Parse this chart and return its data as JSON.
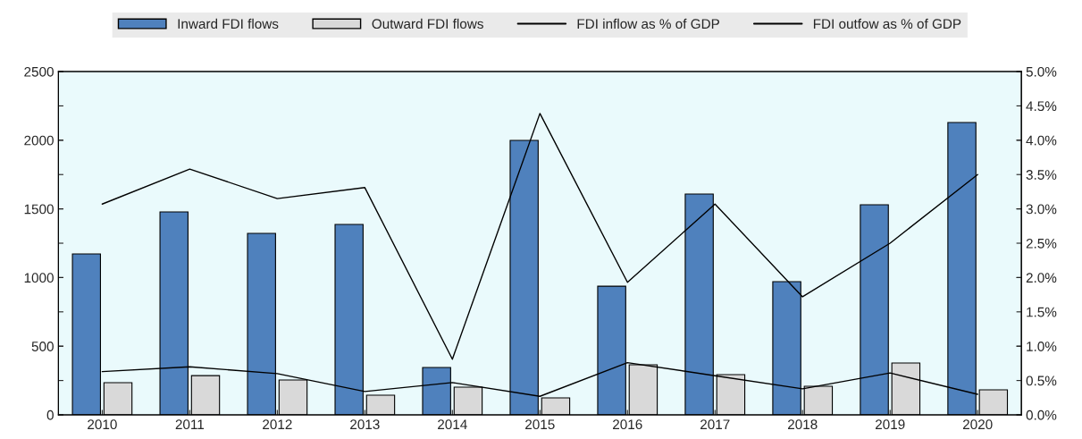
{
  "chart_data": {
    "type": "bar",
    "categories": [
      "2010",
      "2011",
      "2012",
      "2013",
      "2014",
      "2015",
      "2016",
      "2017",
      "2018",
      "2019",
      "2020"
    ],
    "series": [
      {
        "name": "Inward FDI flows",
        "color": "#4f81bd",
        "values": [
          1172,
          1478,
          1322,
          1387,
          345,
          1999,
          937,
          1608,
          970,
          1530,
          2129
        ]
      },
      {
        "name": "Outward FDI flows",
        "color": "#d9d9d9",
        "values": [
          234,
          286,
          254,
          143,
          202,
          124,
          365,
          293,
          208,
          378,
          182
        ]
      },
      {
        "name": "FDI inflow as % of GDP",
        "type": "line",
        "axis": "y2",
        "color": "#000000",
        "values": [
          3.07,
          3.58,
          3.15,
          3.31,
          0.81,
          4.39,
          1.93,
          3.07,
          1.72,
          2.5,
          3.5
        ]
      },
      {
        "name": "FDI outfow as % of GDP",
        "type": "line",
        "axis": "y2",
        "color": "#000000",
        "values": [
          0.63,
          0.7,
          0.6,
          0.34,
          0.47,
          0.27,
          0.76,
          0.57,
          0.38,
          0.61,
          0.3
        ]
      }
    ],
    "ylim": [
      0,
      2500
    ],
    "yticks": [
      0,
      500,
      1000,
      1500,
      2000,
      2500
    ],
    "y2lim": [
      0,
      5
    ],
    "y2ticks": [
      {
        "value": 0,
        "label": "0.0%"
      },
      {
        "value": 0.5,
        "label": "0.5%"
      },
      {
        "value": 1,
        "label": "1.0%"
      },
      {
        "value": 1.5,
        "label": "1.5%"
      },
      {
        "value": 2,
        "label": "2.0%"
      },
      {
        "value": 2.5,
        "label": "2.5%"
      },
      {
        "value": 3,
        "label": "3.0%"
      },
      {
        "value": 3.5,
        "label": "3.5%"
      },
      {
        "value": 4,
        "label": "4.0%"
      },
      {
        "value": 4.5,
        "label": "4.5%"
      },
      {
        "value": 5,
        "label": "5.0%"
      }
    ],
    "legend": "top",
    "grid": false,
    "marker": "none",
    "line_style": "solid"
  }
}
